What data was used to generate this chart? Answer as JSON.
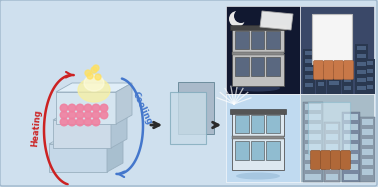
{
  "bg_color": "#cfe0ee",
  "heating_color": "#cc2222",
  "cooling_color": "#4477cc",
  "heating_label": "Heating",
  "cooling_label": "Cooling",
  "dot_color": "#f080a0",
  "block_front": "#cddbe8",
  "block_top": "#ddeaf4",
  "block_side": "#b0c5d5",
  "block_edge": "#9ab0c0",
  "panel_gray": "#a8b8c8",
  "panel_blue": "#c8dce8",
  "night_bg": "#111830",
  "night_photo_bg": "#3a4868",
  "day_bg": "#c0daf0",
  "day_photo_bg": "#b0c8d8",
  "building_fc": "#d8d8d8",
  "building_glass_night": "#7080a0",
  "building_glass_day": "#90b8d0",
  "hydrogel_white": "#f2f2f2",
  "hydrogel_edge": "#cccccc",
  "glow_color": "#f8f0a0",
  "arrow_dark": "#2a2a2a"
}
